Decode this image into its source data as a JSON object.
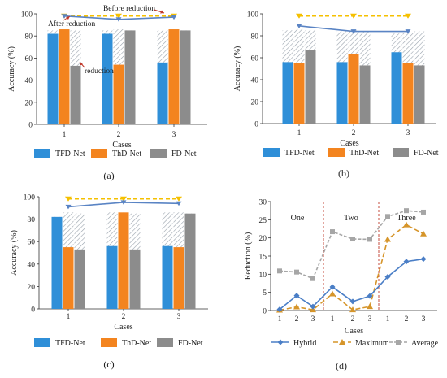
{
  "chart_data": [
    {
      "panel": "(a)",
      "type": "bar",
      "xlabel": "Cases",
      "ylabel": "Accuracy (%)",
      "ylim": [
        0,
        100
      ],
      "yticks": [
        0,
        20,
        40,
        60,
        80,
        100
      ],
      "categories": [
        "1",
        "2",
        "3"
      ],
      "series": [
        {
          "name": "TFD-Net",
          "values": [
            82,
            82,
            56
          ],
          "before": [
            85,
            85,
            85
          ]
        },
        {
          "name": "ThD-Net",
          "values": [
            86,
            54,
            86
          ],
          "before": [
            86,
            86,
            86
          ]
        },
        {
          "name": "FD-Net",
          "values": [
            53,
            85,
            85
          ],
          "before": [
            85,
            85,
            85
          ]
        }
      ],
      "lines": [
        {
          "name": "Before reduction",
          "values": [
            98,
            98,
            98
          ]
        },
        {
          "name": "After reduction",
          "values": [
            98,
            95,
            97
          ]
        }
      ],
      "annotations": [
        "Before reduction",
        "After reduction",
        "reduction"
      ]
    },
    {
      "panel": "(b)",
      "type": "bar",
      "xlabel": "Cases",
      "ylabel": "Accuracy (%)",
      "ylim": [
        0,
        100
      ],
      "yticks": [
        0,
        20,
        40,
        60,
        80,
        100
      ],
      "categories": [
        "1",
        "2",
        "3"
      ],
      "series": [
        {
          "name": "TFD-Net",
          "values": [
            56,
            56,
            65
          ],
          "before": [
            85,
            84,
            82
          ]
        },
        {
          "name": "ThD-Net",
          "values": [
            55,
            63,
            55
          ],
          "before": [
            86,
            85,
            83
          ]
        },
        {
          "name": "FD-Net",
          "values": [
            67,
            53,
            53
          ],
          "before": [
            85,
            84,
            84
          ]
        }
      ],
      "lines": [
        {
          "name": "Before reduction",
          "values": [
            98,
            98,
            98
          ]
        },
        {
          "name": "After reduction",
          "values": [
            89,
            84,
            84
          ]
        }
      ]
    },
    {
      "panel": "(c)",
      "type": "bar",
      "xlabel": "Cases",
      "ylabel": "Accuracy (%)",
      "ylim": [
        0,
        100
      ],
      "yticks": [
        0,
        20,
        40,
        60,
        80,
        100
      ],
      "categories": [
        "1",
        "2",
        "3"
      ],
      "series": [
        {
          "name": "TFD-Net",
          "values": [
            82,
            56,
            56
          ],
          "before": [
            82,
            86,
            86
          ]
        },
        {
          "name": "ThD-Net",
          "values": [
            55,
            86,
            55
          ],
          "before": [
            86,
            86,
            86
          ]
        },
        {
          "name": "FD-Net",
          "values": [
            53,
            53,
            85
          ],
          "before": [
            85,
            85,
            85
          ]
        }
      ],
      "lines": [
        {
          "name": "Before reduction",
          "values": [
            98,
            98,
            98
          ]
        },
        {
          "name": "After reduction",
          "values": [
            91,
            95,
            94
          ]
        }
      ]
    },
    {
      "panel": "(d)",
      "type": "line",
      "xlabel": "Cases",
      "ylabel": "Reduction (%)",
      "ylim": [
        0,
        30
      ],
      "yticks": [
        0,
        5,
        10,
        15,
        20,
        25,
        30
      ],
      "x": [
        "1",
        "2",
        "3",
        "1",
        "2",
        "3",
        "1",
        "2",
        "3"
      ],
      "groups": [
        "One",
        "Two",
        "Three"
      ],
      "series": [
        {
          "name": "Hybrid",
          "values": [
            0.3,
            4.1,
            1.1,
            6.5,
            2.5,
            4.0,
            9.3,
            13.5,
            14.2
          ]
        },
        {
          "name": "Maximum",
          "values": [
            0.1,
            1.0,
            0.2,
            4.6,
            0.2,
            1.1,
            19.6,
            23.6,
            21.1
          ]
        },
        {
          "name": "Average",
          "values": [
            10.9,
            10.6,
            8.8,
            21.7,
            19.7,
            19.6,
            25.9,
            27.5,
            27.1
          ]
        }
      ]
    }
  ],
  "colors": {
    "tfd": "#2f8fd8",
    "thd": "#f3841f",
    "fd": "#8c8c8c",
    "before_line": "#f5c000",
    "after_line": "#5a84c4",
    "hybrid": "#4a7ec6",
    "maximum": "#d6952a",
    "average": "#a6a6a6",
    "divider": "#c0392b"
  }
}
